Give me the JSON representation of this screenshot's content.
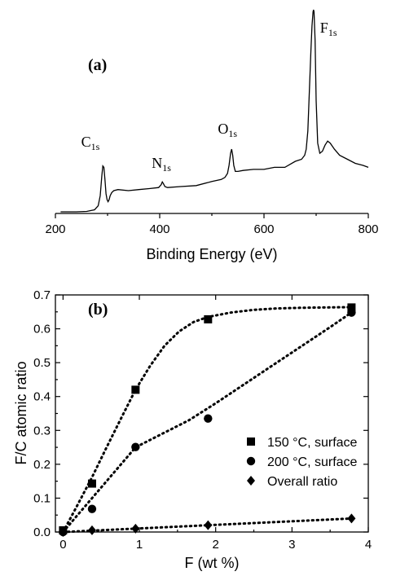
{
  "chart_data": [
    {
      "panel": "(a)",
      "type": "line",
      "xlabel": "Binding Energy (eV)",
      "ylabel": "",
      "xlim": [
        200,
        800
      ],
      "x_ticks": [
        200,
        400,
        600,
        800
      ],
      "y_axis_shown": false,
      "peak_labels": [
        {
          "main": "C",
          "sub": "1s",
          "x": 290
        },
        {
          "main": "N",
          "sub": "1s",
          "x": 405
        },
        {
          "main": "O",
          "sub": "1s",
          "x": 538
        },
        {
          "main": "F",
          "sub": "1s",
          "x": 695
        }
      ],
      "series": [
        {
          "x": [
            210,
            240,
            260,
            275,
            282,
            286,
            289,
            291,
            293,
            295,
            297,
            299,
            301,
            303,
            305,
            308,
            312,
            320,
            340,
            360,
            380,
            398,
            403,
            405,
            407,
            410,
            415,
            440,
            470,
            500,
            518,
            525,
            530,
            533,
            536,
            538,
            540,
            542,
            545,
            550,
            560,
            580,
            600,
            620,
            640,
            660,
            672,
            678,
            681,
            684,
            687,
            690,
            692,
            694,
            695,
            696,
            698,
            700,
            703,
            707,
            712,
            717,
            722,
            727,
            735,
            745,
            760,
            775,
            790,
            800
          ],
          "y": [
            0.0,
            0.0,
            0.002,
            0.01,
            0.03,
            0.08,
            0.18,
            0.227,
            0.22,
            0.16,
            0.09,
            0.06,
            0.05,
            0.06,
            0.08,
            0.095,
            0.105,
            0.11,
            0.105,
            0.11,
            0.115,
            0.12,
            0.135,
            0.148,
            0.14,
            0.125,
            0.12,
            0.125,
            0.13,
            0.15,
            0.16,
            0.17,
            0.19,
            0.23,
            0.29,
            0.31,
            0.28,
            0.23,
            0.2,
            0.2,
            0.205,
            0.21,
            0.21,
            0.22,
            0.22,
            0.25,
            0.26,
            0.28,
            0.31,
            0.4,
            0.6,
            0.8,
            0.92,
            0.99,
            1.0,
            0.99,
            0.85,
            0.55,
            0.34,
            0.29,
            0.3,
            0.33,
            0.35,
            0.34,
            0.31,
            0.28,
            0.26,
            0.24,
            0.23,
            0.22
          ]
        }
      ]
    },
    {
      "panel": "(b)",
      "type": "scatter",
      "xlabel": "F (wt %)",
      "ylabel": "F/C atomic ratio",
      "xlim": [
        -0.1,
        4.0
      ],
      "ylim": [
        0.0,
        0.7
      ],
      "x_ticks": [
        0,
        1,
        2,
        3,
        4
      ],
      "y_ticks": [
        0.0,
        0.1,
        0.2,
        0.3,
        0.4,
        0.5,
        0.6,
        0.7
      ],
      "legend_position": "right",
      "series": [
        {
          "name": "150 °C, surface",
          "marker": "square",
          "x": [
            0.0,
            0.38,
            0.95,
            1.9,
            3.78
          ],
          "y": [
            0.005,
            0.143,
            0.42,
            0.628,
            0.663
          ],
          "fit_x": [
            0.0,
            0.19,
            0.38,
            0.57,
            0.76,
            0.95,
            1.14,
            1.33,
            1.52,
            1.71,
            1.9,
            2.2,
            2.5,
            2.8,
            3.1,
            3.4,
            3.78
          ],
          "fit_y": [
            0.0,
            0.08,
            0.162,
            0.25,
            0.335,
            0.42,
            0.49,
            0.55,
            0.592,
            0.62,
            0.635,
            0.648,
            0.656,
            0.66,
            0.662,
            0.663,
            0.664
          ]
        },
        {
          "name": "200 °C, surface",
          "marker": "circle",
          "x": [
            0.0,
            0.38,
            0.95,
            1.9,
            3.78
          ],
          "y": [
            0.0,
            0.068,
            0.251,
            0.335,
            0.648
          ],
          "fit_x": [
            0.0,
            0.19,
            0.38,
            0.57,
            0.76,
            0.95,
            1.3,
            1.65,
            2.0,
            2.4,
            2.8,
            3.2,
            3.5,
            3.78
          ],
          "fit_y": [
            0.0,
            0.05,
            0.1,
            0.15,
            0.2,
            0.25,
            0.29,
            0.33,
            0.38,
            0.44,
            0.5,
            0.56,
            0.605,
            0.648
          ]
        },
        {
          "name": "Overall ratio",
          "marker": "diamond",
          "x": [
            0.0,
            0.38,
            0.95,
            1.9,
            3.78
          ],
          "y": [
            0.0,
            0.005,
            0.01,
            0.02,
            0.04
          ],
          "fit_x": [
            0.0,
            3.78
          ],
          "fit_y": [
            0.0,
            0.04
          ]
        }
      ]
    }
  ]
}
